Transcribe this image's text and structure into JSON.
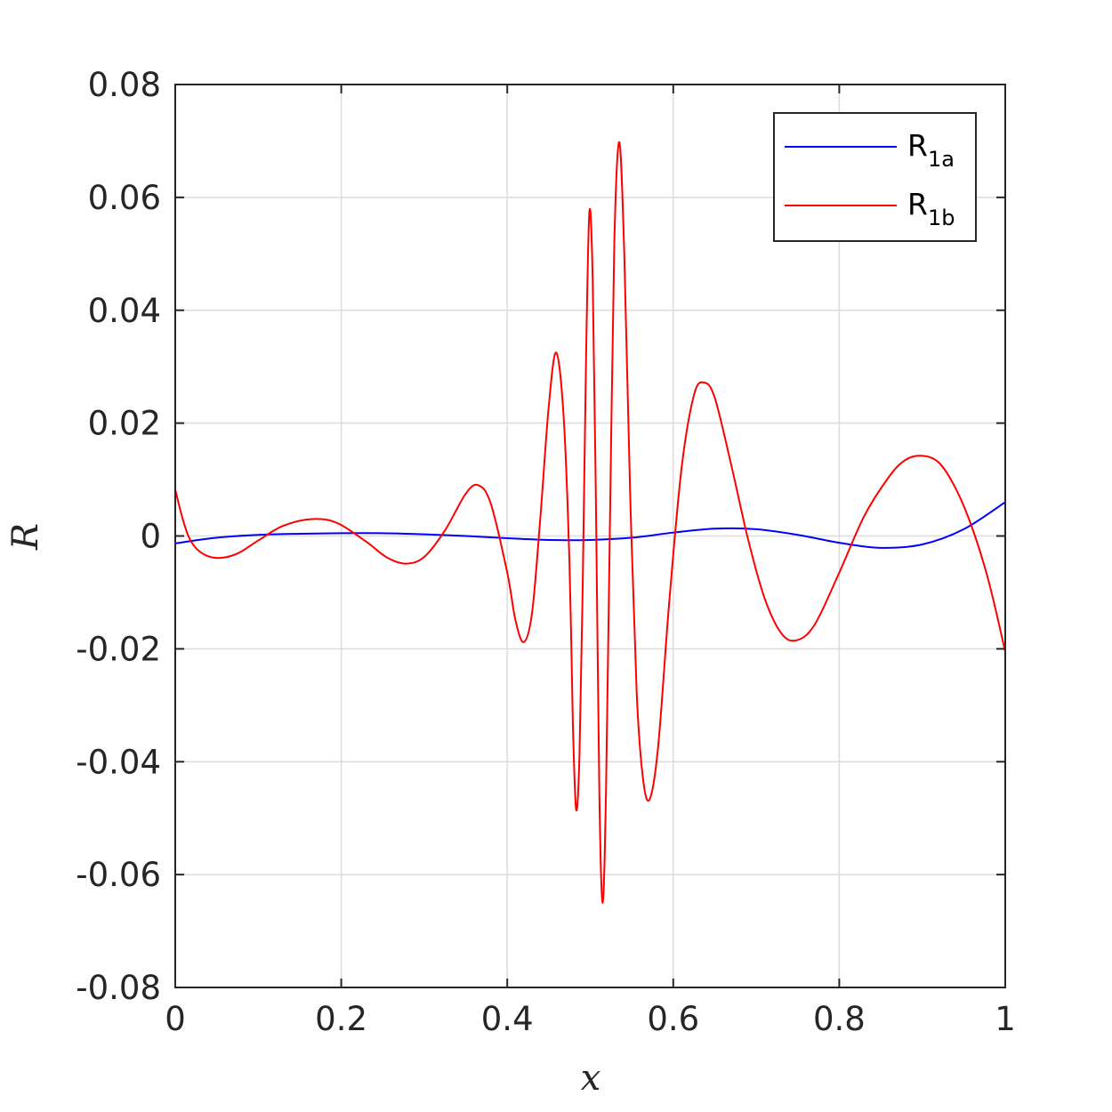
{
  "chart_data": {
    "type": "line",
    "xlabel": "x",
    "ylabel": "R",
    "xlim": [
      0,
      1
    ],
    "ylim": [
      -0.08,
      0.08
    ],
    "xticks": [
      0,
      0.2,
      0.4,
      0.6,
      0.8,
      1
    ],
    "xtick_labels": [
      "0",
      "0.2",
      "0.4",
      "0.6",
      "0.8",
      "1"
    ],
    "yticks": [
      -0.08,
      -0.06,
      -0.04,
      -0.02,
      0,
      0.02,
      0.04,
      0.06,
      0.08
    ],
    "ytick_labels": [
      "-0.08",
      "-0.06",
      "-0.04",
      "-0.02",
      "0",
      "0.02",
      "0.04",
      "0.06",
      "0.08"
    ],
    "grid": true,
    "legend_position": "top-right",
    "series": [
      {
        "name": "R1a",
        "legend_main": "R",
        "legend_sub": "1a",
        "color": "#0000ff",
        "points": [
          [
            0,
            -0.0013
          ],
          [
            0.05,
            -0.0003
          ],
          [
            0.1,
            0.0002
          ],
          [
            0.15,
            0.0004
          ],
          [
            0.2,
            0.0005
          ],
          [
            0.25,
            0.0005
          ],
          [
            0.3,
            0.0003
          ],
          [
            0.35,
            0.0
          ],
          [
            0.4,
            -0.0004
          ],
          [
            0.45,
            -0.0007
          ],
          [
            0.5,
            -0.0007
          ],
          [
            0.55,
            -0.0003
          ],
          [
            0.6,
            0.0006
          ],
          [
            0.65,
            0.0013
          ],
          [
            0.7,
            0.0012
          ],
          [
            0.75,
            0.0002
          ],
          [
            0.8,
            -0.0012
          ],
          [
            0.85,
            -0.0021
          ],
          [
            0.9,
            -0.0015
          ],
          [
            0.95,
            0.0012
          ],
          [
            1.0,
            0.006
          ]
        ]
      },
      {
        "name": "R1b",
        "legend_main": "R",
        "legend_sub": "1b",
        "color": "#ff0000",
        "points": [
          [
            0,
            0.0082
          ],
          [
            0.01,
            0.0025
          ],
          [
            0.02,
            -0.0012
          ],
          [
            0.035,
            -0.0033
          ],
          [
            0.053,
            -0.0039
          ],
          [
            0.075,
            -0.0031
          ],
          [
            0.1,
            -0.0008
          ],
          [
            0.13,
            0.0018
          ],
          [
            0.165,
            0.003
          ],
          [
            0.195,
            0.0023
          ],
          [
            0.23,
            -0.001
          ],
          [
            0.255,
            -0.0038
          ],
          [
            0.278,
            -0.0049
          ],
          [
            0.3,
            -0.0037
          ],
          [
            0.325,
            0.001
          ],
          [
            0.35,
            0.0075
          ],
          [
            0.365,
            0.009
          ],
          [
            0.38,
            0.0058
          ],
          [
            0.4,
            -0.0065
          ],
          [
            0.41,
            -0.015
          ],
          [
            0.42,
            -0.0188
          ],
          [
            0.43,
            -0.0135
          ],
          [
            0.44,
            0.0035
          ],
          [
            0.45,
            0.023
          ],
          [
            0.459,
            0.0325
          ],
          [
            0.468,
            0.021
          ],
          [
            0.475,
            -0.005
          ],
          [
            0.479,
            -0.033
          ],
          [
            0.483,
            -0.0485
          ],
          [
            0.487,
            -0.039
          ],
          [
            0.491,
            -0.008
          ],
          [
            0.495,
            0.032
          ],
          [
            0.499,
            0.0575
          ],
          [
            0.503,
            0.045
          ],
          [
            0.507,
            0.004
          ],
          [
            0.511,
            -0.046
          ],
          [
            0.515,
            -0.065
          ],
          [
            0.519,
            -0.045
          ],
          [
            0.524,
            0.005
          ],
          [
            0.529,
            0.052
          ],
          [
            0.535,
            0.0698
          ],
          [
            0.541,
            0.05
          ],
          [
            0.548,
            0.008
          ],
          [
            0.556,
            -0.028
          ],
          [
            0.564,
            -0.0435
          ],
          [
            0.572,
            -0.0465
          ],
          [
            0.582,
            -0.037
          ],
          [
            0.595,
            -0.012
          ],
          [
            0.61,
            0.012
          ],
          [
            0.625,
            0.025
          ],
          [
            0.637,
            0.0272
          ],
          [
            0.65,
            0.0245
          ],
          [
            0.67,
            0.0125
          ],
          [
            0.69,
            -0.0005
          ],
          [
            0.71,
            -0.011
          ],
          [
            0.73,
            -0.0172
          ],
          [
            0.748,
            -0.0185
          ],
          [
            0.77,
            -0.0158
          ],
          [
            0.8,
            -0.0065
          ],
          [
            0.83,
            0.0035
          ],
          [
            0.86,
            0.0105
          ],
          [
            0.88,
            0.0135
          ],
          [
            0.9,
            0.0142
          ],
          [
            0.92,
            0.013
          ],
          [
            0.94,
            0.0085
          ],
          [
            0.96,
            0.0015
          ],
          [
            0.98,
            -0.008
          ],
          [
            1.0,
            -0.0205
          ]
        ]
      }
    ]
  }
}
